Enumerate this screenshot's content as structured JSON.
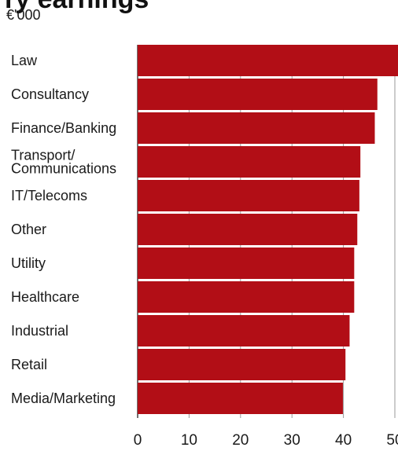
{
  "chart_data": {
    "type": "bar",
    "orientation": "horizontal",
    "title": "",
    "subtitle": "€'000",
    "xlabel": "",
    "ylabel": "",
    "categories": [
      "Law",
      "Consultancy",
      "Finance/Banking",
      "Transport/\nCommunications",
      "IT/Telecoms",
      "Other",
      "Utility",
      "Healthcare",
      "Industrial",
      "Retail",
      "Media/Marketing"
    ],
    "values": [
      51.4,
      46.6,
      46.1,
      43.3,
      43.1,
      42.7,
      42.1,
      42.1,
      41.2,
      40.4,
      39.9
    ],
    "xlim": [
      0,
      52
    ],
    "xticks": [
      0,
      10,
      20,
      30,
      40,
      50
    ],
    "grid": "vertical-lines-at-ticks",
    "legend": "none",
    "bar_color": "#b20e16"
  },
  "header": {
    "title_fragment": "ry earnings",
    "subtitle": "€'000"
  }
}
